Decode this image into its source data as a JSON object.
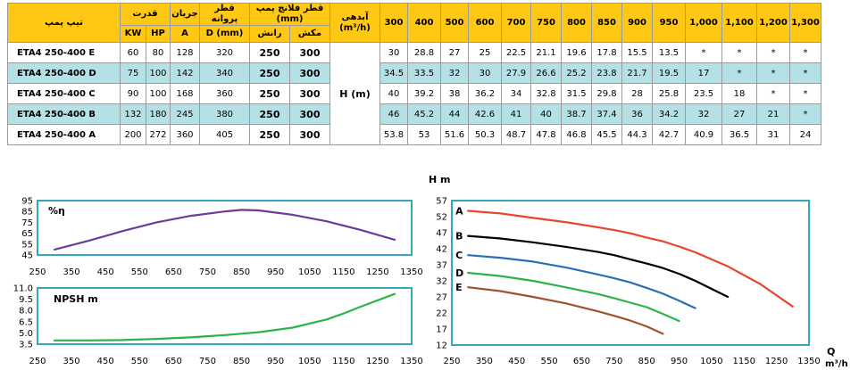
{
  "table": {
    "headers": {
      "model": "تیپ پمپ",
      "power": "قدرت",
      "current": "جریان",
      "impeller_dia": "قطر پروانه",
      "flange_dia": "قطر فلانچ پمپ (mm)",
      "flow": "آبدهی",
      "flow_unit": "(m³/h)",
      "kw": "KW",
      "hp": "HP",
      "amp": "A",
      "d_mm": "D (mm)",
      "outlet": "رانش",
      "inlet": "مکش",
      "h_label": "H (m)",
      "flows": [
        "300",
        "400",
        "500",
        "600",
        "700",
        "750",
        "800",
        "850",
        "900",
        "950",
        "1,000",
        "1,100",
        "1,200",
        "1,300"
      ]
    },
    "rows": [
      {
        "model": "ETA4 250-400 E",
        "kw": "60",
        "hp": "80",
        "a": "128",
        "d": "320",
        "outlet": "250",
        "inlet": "300",
        "heads": [
          "30",
          "28.8",
          "27",
          "25",
          "22.5",
          "21.1",
          "19.6",
          "17.8",
          "15.5",
          "13.5",
          "*",
          "*",
          "*",
          "*"
        ]
      },
      {
        "model": "ETA4 250-400 D",
        "kw": "75",
        "hp": "100",
        "a": "142",
        "d": "340",
        "outlet": "250",
        "inlet": "300",
        "heads": [
          "34.5",
          "33.5",
          "32",
          "30",
          "27.9",
          "26.6",
          "25.2",
          "23.8",
          "21.7",
          "19.5",
          "17",
          "*",
          "*",
          "*"
        ]
      },
      {
        "model": "ETA4 250-400 C",
        "kw": "90",
        "hp": "100",
        "a": "168",
        "d": "360",
        "outlet": "250",
        "inlet": "300",
        "heads": [
          "40",
          "39.2",
          "38",
          "36.2",
          "34",
          "32.8",
          "31.5",
          "29.8",
          "28",
          "25.8",
          "23.5",
          "18",
          "*",
          "*"
        ]
      },
      {
        "model": "ETA4 250-400 B",
        "kw": "132",
        "hp": "180",
        "a": "245",
        "d": "380",
        "outlet": "250",
        "inlet": "300",
        "heads": [
          "46",
          "45.2",
          "44",
          "42.6",
          "41",
          "40",
          "38.7",
          "37.4",
          "36",
          "34.2",
          "32",
          "27",
          "21",
          "*"
        ]
      },
      {
        "model": "ETA4 250-400 A",
        "kw": "200",
        "hp": "272",
        "a": "360",
        "d": "405",
        "outlet": "250",
        "inlet": "300",
        "heads": [
          "53.8",
          "53",
          "51.6",
          "50.3",
          "48.7",
          "47.8",
          "46.8",
          "45.5",
          "44.3",
          "42.7",
          "40.9",
          "36.5",
          "31",
          "24"
        ]
      }
    ]
  },
  "chart_data": [
    {
      "type": "line",
      "id": "efficiency",
      "title": "%η",
      "ylim": [
        45,
        95
      ],
      "yticks": [
        "95",
        "85",
        "75",
        "65",
        "55",
        "45"
      ],
      "ytick_values": [
        95,
        85,
        75,
        65,
        55,
        45
      ],
      "xlim": [
        250,
        1350
      ],
      "xticks": [
        "250",
        "350",
        "450",
        "550",
        "650",
        "750",
        "850",
        "950",
        "1050",
        "1150",
        "1250",
        "1350"
      ],
      "xtick_values": [
        250,
        350,
        450,
        550,
        650,
        750,
        850,
        950,
        1050,
        1150,
        1250,
        1350
      ],
      "color": "#6a3d9a",
      "series": [
        {
          "x": [
            300,
            400,
            500,
            600,
            700,
            800,
            850,
            900,
            1000,
            1100,
            1200,
            1300
          ],
          "y": [
            50,
            58,
            67,
            75,
            81,
            85,
            86.5,
            86,
            82,
            76,
            68,
            59
          ]
        }
      ]
    },
    {
      "type": "line",
      "id": "npsh",
      "title": "NPSH m",
      "ylim": [
        3.5,
        11.0
      ],
      "yticks": [
        "11.0",
        "9.5",
        "8.0",
        "6.5",
        "5.0",
        "3.5"
      ],
      "ytick_values": [
        11.0,
        9.5,
        8.0,
        6.5,
        5.0,
        3.5
      ],
      "xlim": [
        250,
        1350
      ],
      "xticks": [
        "250",
        "350",
        "450",
        "550",
        "650",
        "750",
        "850",
        "950",
        "1050",
        "1150",
        "1250",
        "1350"
      ],
      "xtick_values": [
        250,
        350,
        450,
        550,
        650,
        750,
        850,
        950,
        1050,
        1150,
        1250,
        1350
      ],
      "color": "#2eb34a",
      "series": [
        {
          "x": [
            300,
            400,
            500,
            600,
            700,
            800,
            900,
            1000,
            1100,
            1150,
            1200,
            1300
          ],
          "y": [
            4.0,
            4.0,
            4.05,
            4.2,
            4.4,
            4.7,
            5.1,
            5.7,
            6.8,
            7.6,
            8.5,
            10.2
          ]
        }
      ]
    },
    {
      "type": "line",
      "id": "head",
      "ylabel": "H m",
      "xlabel": "Q",
      "xlabel_unit": "m³/h",
      "ylim": [
        12,
        57
      ],
      "yticks": [
        "57",
        "52",
        "47",
        "42",
        "37",
        "32",
        "27",
        "22",
        "17",
        "12"
      ],
      "ytick_values": [
        57,
        52,
        47,
        42,
        37,
        32,
        27,
        22,
        17,
        12
      ],
      "xlim": [
        250,
        1350
      ],
      "xticks": [
        "250",
        "350",
        "450",
        "550",
        "650",
        "750",
        "850",
        "950",
        "1050",
        "1150",
        "1250",
        "1350"
      ],
      "xtick_values": [
        250,
        350,
        450,
        550,
        650,
        750,
        850,
        950,
        1050,
        1150,
        1250,
        1350
      ],
      "series": [
        {
          "name": "A",
          "color": "#e8452c",
          "x": [
            300,
            400,
            500,
            600,
            700,
            750,
            800,
            850,
            900,
            950,
            1000,
            1100,
            1200,
            1300
          ],
          "y": [
            53.8,
            53,
            51.6,
            50.3,
            48.7,
            47.8,
            46.8,
            45.5,
            44.3,
            42.7,
            40.9,
            36.5,
            31,
            24
          ]
        },
        {
          "name": "B",
          "color": "#000000",
          "x": [
            300,
            400,
            500,
            600,
            700,
            750,
            800,
            850,
            900,
            950,
            1000,
            1100
          ],
          "y": [
            46,
            45.2,
            44,
            42.6,
            41,
            40,
            38.7,
            37.4,
            36,
            34.2,
            32,
            27
          ]
        },
        {
          "name": "C",
          "color": "#2a6fb5",
          "x": [
            300,
            400,
            500,
            600,
            700,
            750,
            800,
            850,
            900,
            950,
            1000
          ],
          "y": [
            40,
            39.2,
            38,
            36.2,
            34,
            32.8,
            31.5,
            29.8,
            28,
            25.8,
            23.5
          ]
        },
        {
          "name": "D",
          "color": "#2eb34a",
          "x": [
            300,
            400,
            500,
            600,
            700,
            750,
            800,
            850,
            900,
            950
          ],
          "y": [
            34.5,
            33.5,
            32,
            30,
            27.9,
            26.6,
            25.2,
            23.8,
            21.7,
            19.5
          ]
        },
        {
          "name": "E",
          "color": "#a0522d",
          "x": [
            300,
            400,
            500,
            600,
            700,
            750,
            800,
            850,
            900
          ],
          "y": [
            30,
            28.8,
            27,
            25,
            22.5,
            21.1,
            19.6,
            17.8,
            15.5
          ]
        }
      ]
    }
  ]
}
